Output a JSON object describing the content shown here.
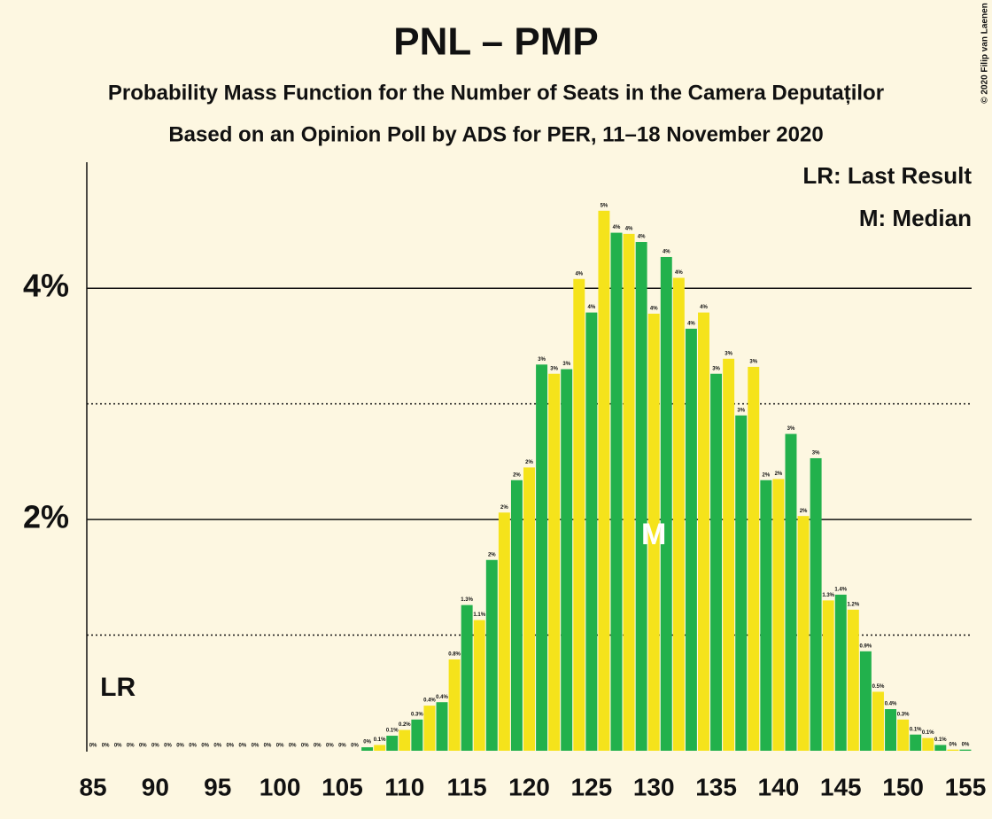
{
  "chart_data": {
    "type": "bar",
    "title": "PNL – PMP",
    "subtitle": "Probability Mass Function for the Number of Seats in the Camera Deputaților",
    "subtitle2": "Based on an Opinion Poll by ADS for PER, 11–18 November 2020",
    "copyright": "© 2020 Filip van Laenen",
    "legend": [
      "LR: Last Result",
      "M: Median"
    ],
    "last_result": 87,
    "last_result_label": "LR",
    "median": 130,
    "median_label": "M",
    "bar_colors": [
      "#22b14c",
      "#f5e31b"
    ],
    "x": [
      85,
      86,
      87,
      88,
      89,
      90,
      91,
      92,
      93,
      94,
      95,
      96,
      97,
      98,
      99,
      100,
      101,
      102,
      103,
      104,
      105,
      106,
      107,
      108,
      109,
      110,
      111,
      112,
      113,
      114,
      115,
      116,
      117,
      118,
      119,
      120,
      121,
      122,
      123,
      124,
      125,
      126,
      127,
      128,
      129,
      130,
      131,
      132,
      133,
      134,
      135,
      136,
      137,
      138,
      139,
      140,
      141,
      142,
      143,
      144,
      145,
      146,
      147,
      148,
      149,
      150,
      151,
      152,
      153,
      154,
      155
    ],
    "values": [
      0,
      0,
      0,
      0,
      0,
      0,
      0,
      0,
      0,
      0,
      0,
      0,
      0,
      0,
      0,
      0,
      0,
      0,
      0,
      0,
      0,
      0,
      0.03,
      0.05,
      0.13,
      0.18,
      0.27,
      0.39,
      0.42,
      0.79,
      1.26,
      1.13,
      1.65,
      2.06,
      2.34,
      2.45,
      3.34,
      3.26,
      3.3,
      4.08,
      3.79,
      4.67,
      4.48,
      4.47,
      4.4,
      3.78,
      4.27,
      4.09,
      3.65,
      3.79,
      3.26,
      3.39,
      2.9,
      3.32,
      2.34,
      2.35,
      2.74,
      2.03,
      2.53,
      1.3,
      1.35,
      1.22,
      0.86,
      0.51,
      0.36,
      0.27,
      0.14,
      0.11,
      0.05,
      0.01,
      0.01
    ],
    "value_labels": [
      "0%",
      "0%",
      "0%",
      "0%",
      "0%",
      "0%",
      "0%",
      "0%",
      "0%",
      "0%",
      "0%",
      "0%",
      "0%",
      "0%",
      "0%",
      "0%",
      "0%",
      "0%",
      "0%",
      "0%",
      "0%",
      "0%",
      "0%",
      "0.1%",
      "0.1%",
      "0.2%",
      "0.3%",
      "0.4%",
      "0.4%",
      "0.8%",
      "1.3%",
      "1.1%",
      "2%",
      "2%",
      "2%",
      "2%",
      "3%",
      "3%",
      "3%",
      "4%",
      "4%",
      "5%",
      "4%",
      "4%",
      "4%",
      "4%",
      "4%",
      "4%",
      "4%",
      "4%",
      "3%",
      "3%",
      "3%",
      "3%",
      "2%",
      "2%",
      "3%",
      "2%",
      "3%",
      "1.3%",
      "1.4%",
      "1.2%",
      "0.9%",
      "0.5%",
      "0.4%",
      "0.3%",
      "0.1%",
      "0.1%",
      "0.1%",
      "0%",
      "0%"
    ],
    "xlim": [
      84.5,
      155.5
    ],
    "xticks": [
      85,
      90,
      95,
      100,
      105,
      110,
      115,
      120,
      125,
      130,
      135,
      140,
      145,
      150,
      155
    ],
    "ylim": [
      0,
      5.09
    ],
    "yticks": [
      {
        "value": 2,
        "label": "2%"
      },
      {
        "value": 4,
        "label": "4%"
      }
    ],
    "minor_yticks": [
      1,
      3
    ]
  }
}
